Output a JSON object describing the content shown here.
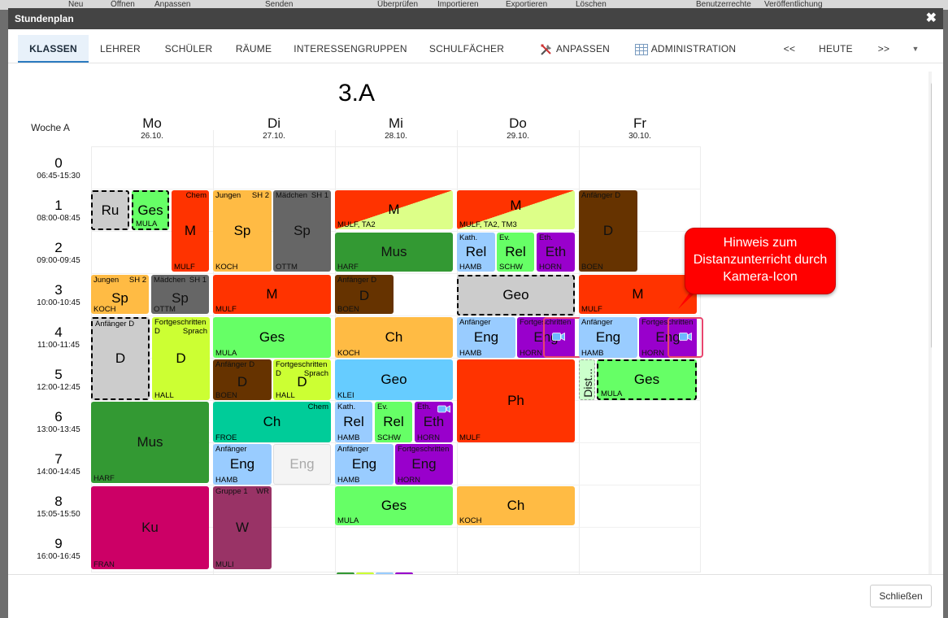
{
  "window": {
    "title": "Stundenplan",
    "close_label": "Schließen"
  },
  "background_menu": [
    "Neu",
    "Öffnen",
    "Anpassen",
    "Senden",
    "Überprüfen",
    "Importieren",
    "Exportieren",
    "Löschen",
    "Benutzerrechte",
    "Veröffentlichung"
  ],
  "tabs": [
    {
      "label": "KLASSEN",
      "active": true
    },
    {
      "label": "LEHRER",
      "active": false
    },
    {
      "label": "SCHÜLER",
      "active": false
    },
    {
      "label": "RÄUME",
      "active": false
    },
    {
      "label": "INTERESSENGRUPPEN",
      "active": false
    },
    {
      "label": "SCHULFÄCHER",
      "active": false
    }
  ],
  "actions": {
    "customize": "ANPASSEN",
    "administration": "ADMINISTRATION",
    "prev": "<<",
    "today": "HEUTE",
    "next": ">>"
  },
  "timetable": {
    "class_name": "3.A",
    "week_label": "Woche A",
    "days": [
      {
        "name": "Mo",
        "date": "26.10."
      },
      {
        "name": "Di",
        "date": "27.10."
      },
      {
        "name": "Mi",
        "date": "28.10."
      },
      {
        "name": "Do",
        "date": "29.10."
      },
      {
        "name": "Fr",
        "date": "30.10."
      }
    ],
    "periods": [
      {
        "num": "0",
        "time": "06:45-15:30"
      },
      {
        "num": "1",
        "time": "08:00-08:45"
      },
      {
        "num": "2",
        "time": "09:00-09:45"
      },
      {
        "num": "3",
        "time": "10:00-10:45"
      },
      {
        "num": "4",
        "time": "11:00-11:45"
      },
      {
        "num": "5",
        "time": "12:00-12:45"
      },
      {
        "num": "6",
        "time": "13:00-13:45"
      },
      {
        "num": "7",
        "time": "14:00-14:45"
      },
      {
        "num": "8",
        "time": "15:05-15:50"
      },
      {
        "num": "9",
        "time": "16:00-16:45"
      }
    ],
    "lessons": {
      "mo_ru": {
        "subject": "Ru",
        "color": "#cccccc"
      },
      "mo_ges": {
        "subject": "Ges",
        "teacher": "MULA",
        "color": "#66ff66"
      },
      "mo_m": {
        "subject": "M",
        "group": "Chem",
        "teacher": "MULF",
        "color": "#ff3300"
      },
      "mo_sp_j": {
        "subject": "Sp",
        "group": "Jungen",
        "group_right": "SH 2",
        "teacher": "KOCH",
        "color": "#ffbb44"
      },
      "mo_sp_m": {
        "subject": "Sp",
        "group": "Mädchen",
        "group_right": "SH 1",
        "teacher": "OTTM",
        "color": "#666666"
      },
      "mo_d1": {
        "subject": "D",
        "group": "Anfänger D",
        "color": "#cccccc"
      },
      "mo_d2": {
        "subject": "D",
        "group": "Fortgeschritten\nD",
        "group_right": "Sprach",
        "teacher": "HALL",
        "color": "#ccff33"
      },
      "mo_mus": {
        "subject": "Mus",
        "teacher": "HARF",
        "color": "#339933"
      },
      "mo_ku": {
        "subject": "Ku",
        "teacher": "FRAN",
        "color": "#cc0066"
      },
      "di_sp_j": {
        "subject": "Sp",
        "group": "Jungen",
        "group_right": "SH 2",
        "teacher": "KOCH",
        "color": "#ffbb44"
      },
      "di_sp_m": {
        "subject": "Sp",
        "group": "Mädchen",
        "group_right": "SH 1",
        "teacher": "OTTM",
        "color": "#666666"
      },
      "di_m": {
        "subject": "M",
        "teacher": "MULF",
        "color": "#ff3300"
      },
      "di_ges": {
        "subject": "Ges",
        "teacher": "MULA",
        "color": "#66ff66"
      },
      "di_d1": {
        "subject": "D",
        "group": "Anfänger D",
        "teacher": "BOEN",
        "color": "#663300"
      },
      "di_d2": {
        "subject": "D",
        "group": "Fortgeschritten\nD",
        "group_right": "Sprach",
        "teacher": "HALL",
        "color": "#ccff33"
      },
      "di_ch": {
        "subject": "Ch",
        "group_right": "Chem",
        "teacher": "FROE",
        "color": "#00cc99"
      },
      "di_eng1": {
        "subject": "Eng",
        "group": "Anfänger",
        "teacher": "HAMB",
        "color": "#99ccff"
      },
      "di_eng2": {
        "subject": "Eng",
        "color": "#f4f4f4"
      },
      "di_w": {
        "subject": "W",
        "group": "Gruppe 1",
        "group_right": "WR",
        "teacher": "MULI",
        "color": "#993366"
      },
      "mi_m": {
        "subject": "M",
        "teacher": "MULF, TA2",
        "color": "#ff3300",
        "color2": "#ddff88"
      },
      "mi_mus": {
        "subject": "Mus",
        "teacher": "HARF",
        "color": "#339933"
      },
      "mi_d": {
        "subject": "D",
        "group": "Anfänger D",
        "teacher": "BOEN",
        "color": "#663300"
      },
      "mi_ch": {
        "subject": "Ch",
        "teacher": "KOCH",
        "color": "#ffbb44"
      },
      "mi_geo": {
        "subject": "Geo",
        "teacher": "KLEI",
        "color": "#66ccff"
      },
      "mi_rel1": {
        "subject": "Rel",
        "group": "Kath.",
        "teacher": "HAMB",
        "color": "#99ccff"
      },
      "mi_rel2": {
        "subject": "Rel",
        "group": "Ev.",
        "teacher": "SCHW",
        "color": "#66ff66"
      },
      "mi_eth": {
        "subject": "Eth",
        "group": "Eth.",
        "teacher": "HORN",
        "color": "#9900cc"
      },
      "mi_eng1": {
        "subject": "Eng",
        "group": "Anfänger",
        "teacher": "HAMB",
        "color": "#99ccff"
      },
      "mi_eng2": {
        "subject": "Eng",
        "group": "Fortgeschritten",
        "teacher": "HORN",
        "color": "#9900cc"
      },
      "mi_ges": {
        "subject": "Ges",
        "teacher": "MULA",
        "color": "#66ff66"
      },
      "do_m": {
        "subject": "M",
        "teacher": "MULF, TA2, TM3",
        "color": "#ff3300",
        "color2": "#ddff88"
      },
      "do_rel1": {
        "subject": "Rel",
        "group": "Kath.",
        "teacher": "HAMB",
        "color": "#99ccff"
      },
      "do_rel2": {
        "subject": "Rel",
        "group": "Ev.",
        "teacher": "SCHW",
        "color": "#66ff66"
      },
      "do_eth": {
        "subject": "Eth",
        "group": "Eth.",
        "teacher": "HORN",
        "color": "#9900cc"
      },
      "do_geo": {
        "subject": "Geo",
        "color": "#cccccc"
      },
      "do_eng1": {
        "subject": "Eng",
        "group": "Anfänger",
        "teacher": "HAMB",
        "color": "#99ccff"
      },
      "do_eng2": {
        "subject": "Eng",
        "group": "Fortgeschritten",
        "teacher": "HORN",
        "color": "#9900cc"
      },
      "do_ph": {
        "subject": "Ph",
        "teacher": "MULF",
        "color": "#ff3300"
      },
      "do_ch": {
        "subject": "Ch",
        "teacher": "KOCH",
        "color": "#ffbb44"
      },
      "fr_d": {
        "subject": "D",
        "group": "Anfänger D",
        "teacher": "BOEN",
        "color": "#663300"
      },
      "fr_m": {
        "subject": "M",
        "teacher": "MULF",
        "color": "#ff3300"
      },
      "fr_eng1": {
        "subject": "Eng",
        "group": "Anfänger",
        "teacher": "HAMB",
        "color": "#99ccff"
      },
      "fr_eng2": {
        "subject": "Eng",
        "group": "Fortgeschritten",
        "teacher": "HORN",
        "color": "#9900cc"
      },
      "fr_dist": {
        "subject": "Dist...",
        "color": "#ccffcc"
      },
      "fr_ges": {
        "subject": "Ges",
        "teacher": "MULA",
        "color": "#66ff66"
      }
    }
  },
  "callout": {
    "text": "Hinweis zum Distanzunterricht durch Kamera-Icon",
    "color": "#ff0000"
  },
  "icons": {
    "camera": "camera-icon",
    "customize": "tools-icon",
    "administration": "table-icon"
  }
}
